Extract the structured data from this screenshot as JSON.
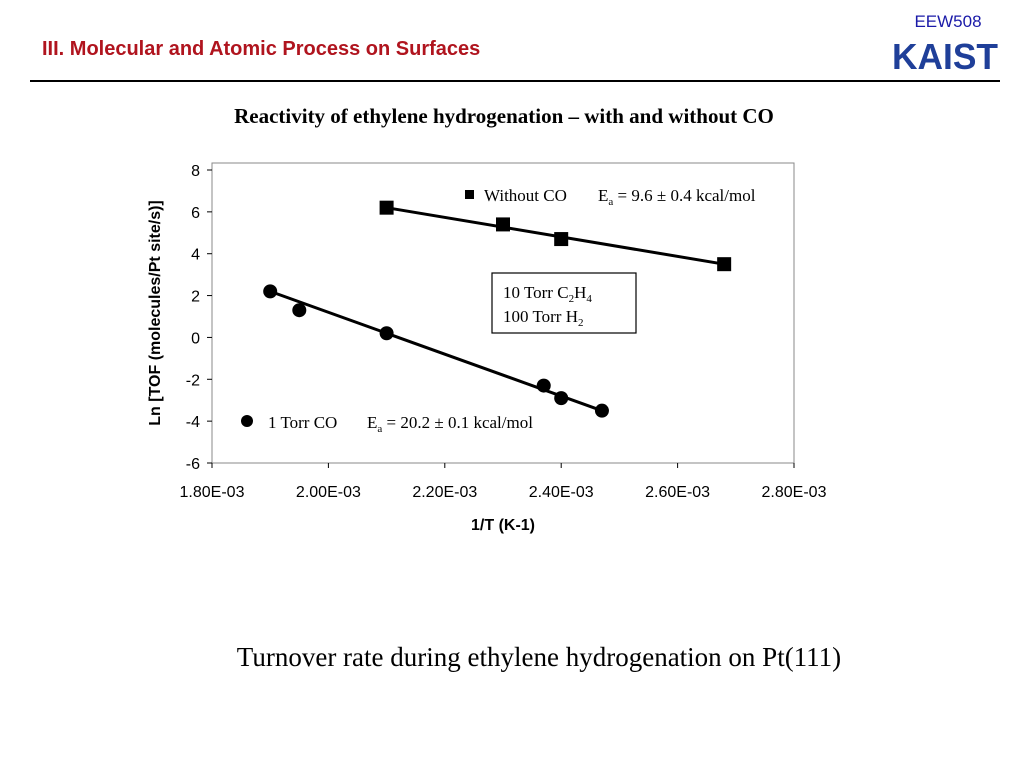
{
  "header": {
    "course_code": "EEW508",
    "logo_text": "KAIST",
    "section_title": "III. Molecular and Atomic Process on Surfaces"
  },
  "slide": {
    "heading": "Reactivity of ethylene hydrogenation – with and without CO",
    "caption": "Turnover rate during ethylene hydrogenation on Pt(111)"
  },
  "chart_data": {
    "type": "scatter",
    "xlabel": "1/T (K-1)",
    "ylabel": "Ln [TOF (molecules/Pt site/s)]",
    "xlim": [
      0.0018,
      0.0028
    ],
    "ylim": [
      -6,
      8
    ],
    "x_ticks": [
      "1.80E-03",
      "2.00E-03",
      "2.20E-03",
      "2.40E-03",
      "2.60E-03",
      "2.80E-03"
    ],
    "y_ticks": [
      "8",
      "6",
      "4",
      "2",
      "0",
      "-2",
      "-4",
      "-6"
    ],
    "grid": false,
    "series": [
      {
        "name": "Without CO",
        "marker": "square",
        "ea_label": "E",
        "ea_sub": "a",
        "ea_value": " = 9.6 ± 0.4 kcal/mol",
        "x": [
          0.0021,
          0.0023,
          0.0024,
          0.00268
        ],
        "y": [
          6.2,
          5.4,
          4.7,
          3.5
        ],
        "fit": {
          "x": [
            0.0021,
            0.00268
          ],
          "y": [
            6.2,
            3.5
          ]
        }
      },
      {
        "name": "1 Torr CO",
        "marker": "circle",
        "ea_label": "E",
        "ea_sub": "a",
        "ea_value": " =  20.2 ± 0.1  kcal/mol",
        "x": [
          0.0019,
          0.00195,
          0.0021,
          0.00237,
          0.0024,
          0.00247
        ],
        "y": [
          2.2,
          1.3,
          0.2,
          -2.3,
          -2.9,
          -3.5
        ],
        "fit": {
          "x": [
            0.0019,
            0.00247
          ],
          "y": [
            2.2,
            -3.5
          ]
        }
      }
    ],
    "conditions": {
      "line1_a": "10 Torr C",
      "line1_sub1": "2",
      "line1_b": "H",
      "line1_sub2": "4",
      "line2_a": "100 Torr H",
      "line2_sub": "2"
    },
    "colors": {
      "ink": "#000000",
      "frame": "#888888"
    }
  }
}
